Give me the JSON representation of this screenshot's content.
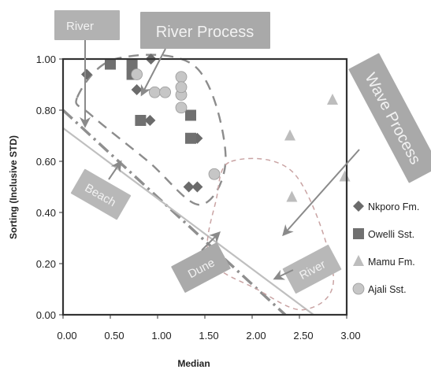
{
  "chart_data": {
    "type": "scatter",
    "xlabel": "Median",
    "ylabel": "Sorting (Inclusive STD)",
    "xlim": [
      0,
      3.0
    ],
    "ylim": [
      0,
      1.0
    ],
    "xticks": [
      "0.00",
      "0.50",
      "1.00",
      "1.50",
      "2.00",
      "2.50",
      "3.00"
    ],
    "yticks": [
      "0.00",
      "0.20",
      "0.40",
      "0.60",
      "0.80",
      "1.00"
    ],
    "grid": false,
    "legend_position": "right",
    "series": [
      {
        "name": "Nkporo Fm.",
        "marker": "diamond",
        "color": "#6b6b6b",
        "points": [
          [
            0.25,
            0.94
          ],
          [
            0.93,
            1.0
          ],
          [
            0.78,
            0.88
          ],
          [
            0.92,
            0.76
          ],
          [
            1.42,
            0.69
          ],
          [
            1.33,
            0.5
          ],
          [
            1.42,
            0.5
          ]
        ]
      },
      {
        "name": "Owelli Sst.",
        "marker": "square",
        "color": "#707070",
        "points": [
          [
            0.5,
            0.98
          ],
          [
            0.73,
            0.98
          ],
          [
            0.73,
            0.94
          ],
          [
            0.82,
            0.76
          ],
          [
            1.35,
            0.78
          ],
          [
            1.35,
            0.69
          ]
        ]
      },
      {
        "name": "Mamu Fm.",
        "marker": "triangle",
        "color": "#bdbdbd",
        "points": [
          [
            2.4,
            0.7
          ],
          [
            2.85,
            0.84
          ],
          [
            2.42,
            0.46
          ],
          [
            2.98,
            0.54
          ]
        ]
      },
      {
        "name": "Ajali Sst.",
        "marker": "circle",
        "color": "#c6c6c6",
        "points": [
          [
            0.78,
            0.94
          ],
          [
            0.97,
            0.87
          ],
          [
            1.08,
            0.87
          ],
          [
            1.25,
            0.93
          ],
          [
            1.25,
            0.86
          ],
          [
            1.25,
            0.89
          ],
          [
            1.25,
            0.81
          ],
          [
            1.6,
            0.55
          ]
        ]
      }
    ],
    "lines": [
      {
        "name": "river-beach-line",
        "style": "dash-dot",
        "color": "#8f8f8f",
        "points": [
          [
            0.0,
            0.8
          ],
          [
            2.35,
            0.0
          ]
        ]
      },
      {
        "name": "beach-dune-line",
        "style": "solid",
        "color": "#bfbfbf",
        "points": [
          [
            0.0,
            0.73
          ],
          [
            2.65,
            0.0
          ]
        ]
      },
      {
        "name": "river-process-envelope",
        "style": "dashed",
        "color": "#8c8c8c"
      },
      {
        "name": "wave-process-envelope",
        "style": "dashed",
        "color": "#c9a3a3"
      }
    ],
    "annotations": [
      "River",
      "River Process",
      "Wave Process",
      "Beach",
      "Dune",
      "River"
    ]
  }
}
